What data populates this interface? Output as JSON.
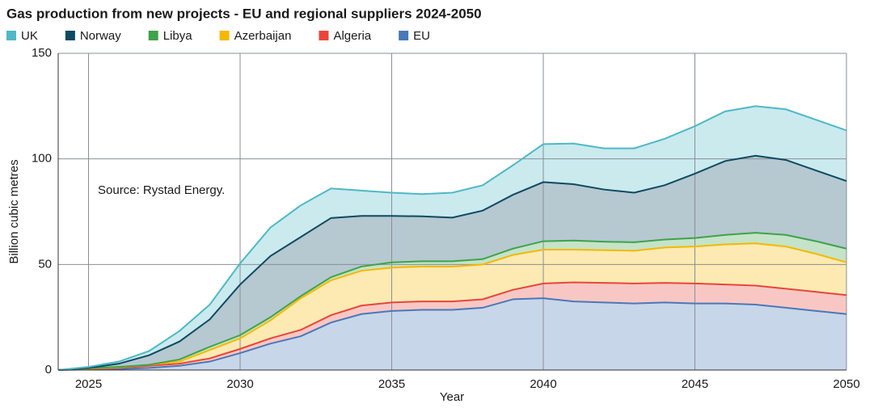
{
  "chart_data": {
    "type": "stacked_area",
    "title": "Gas production from new projects - EU and regional suppliers 2024-2050",
    "x_label": "Year",
    "y_label": "Billion cubic metres",
    "annotation": "Source: Rystad Energy.",
    "x": [
      2024,
      2025,
      2026,
      2027,
      2028,
      2029,
      2030,
      2031,
      2032,
      2033,
      2034,
      2035,
      2036,
      2037,
      2038,
      2039,
      2040,
      2041,
      2042,
      2043,
      2044,
      2045,
      2046,
      2047,
      2048,
      2049,
      2050
    ],
    "xlim": [
      2024,
      2050
    ],
    "xticks": [
      2025,
      2030,
      2035,
      2040,
      2045,
      2050
    ],
    "ylim": [
      0,
      150
    ],
    "yticks": [
      0,
      50,
      100,
      150
    ],
    "grid": true,
    "legend": "top-left",
    "series": [
      {
        "name": "EU",
        "color": "#4a78b8",
        "values": [
          0,
          0.3,
          0.5,
          1,
          2,
          4,
          8,
          12.5,
          16,
          22.5,
          26.5,
          28,
          28.5,
          28.5,
          29.5,
          33.5,
          34,
          32.5,
          32,
          31.5,
          32,
          31.5,
          31.5,
          31,
          29.5,
          28,
          26.5
        ]
      },
      {
        "name": "Algeria",
        "color": "#e8463a",
        "values": [
          0,
          0.2,
          0.5,
          1,
          1,
          1.5,
          2,
          2.5,
          3,
          3.5,
          4,
          4,
          4,
          4,
          4,
          4.5,
          7,
          9,
          9.3,
          9.5,
          9.3,
          9.5,
          9,
          9,
          9,
          9,
          9
        ]
      },
      {
        "name": "Azerbaijan",
        "color": "#f5b800",
        "values": [
          0,
          0.2,
          0.3,
          0.5,
          1,
          4,
          5,
          8.5,
          15,
          16.5,
          16.5,
          16.5,
          16.5,
          16.5,
          16.5,
          16.5,
          16,
          15.5,
          15.5,
          15.5,
          16.7,
          17.5,
          19,
          20,
          20,
          18,
          15.5
        ]
      },
      {
        "name": "Libya",
        "color": "#3ea34a",
        "values": [
          0,
          0.1,
          0.2,
          0,
          1,
          1.5,
          1.5,
          1.5,
          1,
          1.5,
          2,
          2.5,
          2.5,
          2.5,
          2.5,
          3,
          4,
          4.3,
          4,
          4,
          3.8,
          4,
          4.5,
          5,
          5.5,
          6,
          6.5
        ]
      },
      {
        "name": "Norway",
        "color": "#0e4a63",
        "values": [
          0,
          0.2,
          1.5,
          4.5,
          8.5,
          13,
          24,
          29,
          28,
          28,
          24,
          22,
          21.3,
          20.7,
          23,
          25.5,
          28,
          26.7,
          24.7,
          23.5,
          25.7,
          30.5,
          35,
          36.5,
          35.5,
          33.5,
          32
        ]
      },
      {
        "name": "UK",
        "color": "#4fb8c6",
        "values": [
          0,
          0.5,
          1,
          2,
          5,
          7,
          10,
          13.5,
          15,
          14,
          12,
          11,
          10.5,
          11.8,
          12,
          14,
          18,
          19.3,
          19.5,
          21,
          22,
          22.5,
          23.5,
          23.5,
          24,
          24,
          24
        ]
      }
    ]
  }
}
